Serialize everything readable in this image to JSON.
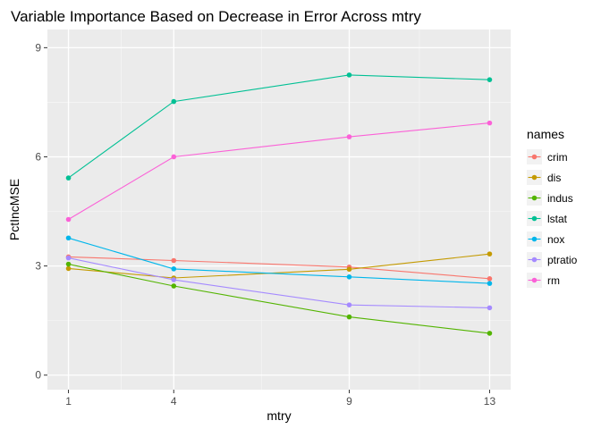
{
  "chart_data": {
    "type": "line",
    "title": "Variable Importance Based on Decrease in Error Across mtry",
    "xlabel": "mtry",
    "ylabel": "PctIncMSE",
    "x": [
      1,
      4,
      9,
      13
    ],
    "xticks": [
      1,
      4,
      9,
      13
    ],
    "yticks": [
      0,
      3,
      6,
      9
    ],
    "xlim": [
      0.4,
      13.6
    ],
    "ylim": [
      -0.4,
      9.5
    ],
    "grid": true,
    "legend_title": "names",
    "legend_position": "right",
    "series": [
      {
        "name": "crim",
        "color": "#F8766D",
        "values": [
          3.25,
          3.15,
          2.97,
          2.65
        ]
      },
      {
        "name": "dis",
        "color": "#C49A00",
        "values": [
          2.93,
          2.67,
          2.91,
          3.33
        ]
      },
      {
        "name": "indus",
        "color": "#53B400",
        "values": [
          3.05,
          2.45,
          1.6,
          1.15
        ]
      },
      {
        "name": "lstat",
        "color": "#00C094",
        "values": [
          5.42,
          7.52,
          8.25,
          8.12
        ]
      },
      {
        "name": "nox",
        "color": "#00B6EB",
        "values": [
          3.77,
          2.92,
          2.7,
          2.52
        ]
      },
      {
        "name": "ptratio",
        "color": "#A58AFF",
        "values": [
          3.22,
          2.62,
          1.93,
          1.85
        ]
      },
      {
        "name": "rm",
        "color": "#FB61D7",
        "values": [
          4.28,
          6.0,
          6.55,
          6.93
        ]
      }
    ]
  }
}
